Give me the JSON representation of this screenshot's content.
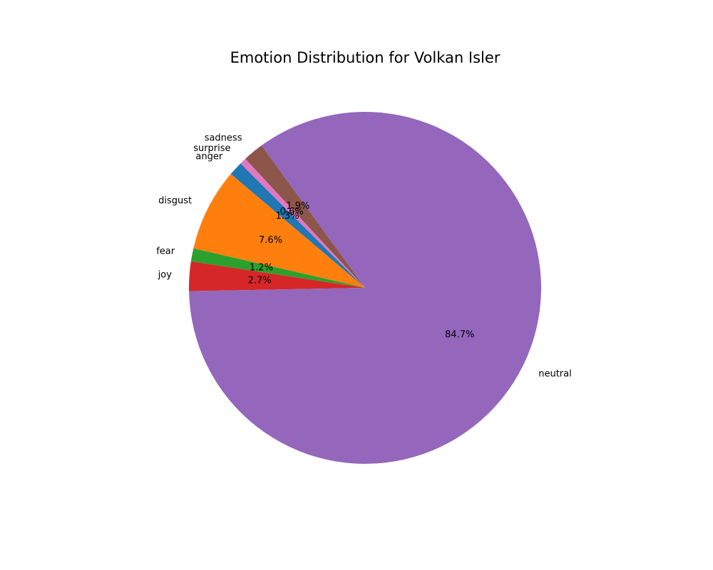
{
  "chart_data": {
    "type": "pie",
    "title": "Emotion Distribution for Volkan Isler",
    "slices": [
      {
        "label": "anger",
        "value": 1.3,
        "pct_label": "1.3%",
        "color": "#1f77b4"
      },
      {
        "label": "disgust",
        "value": 7.6,
        "pct_label": "7.6%",
        "color": "#ff7f0e"
      },
      {
        "label": "fear",
        "value": 1.2,
        "pct_label": "1.2%",
        "color": "#2ca02c"
      },
      {
        "label": "joy",
        "value": 2.7,
        "pct_label": "2.7%",
        "color": "#d62728"
      },
      {
        "label": "neutral",
        "value": 84.7,
        "pct_label": "84.7%",
        "color": "#9467bd"
      },
      {
        "label": "sadness",
        "value": 1.9,
        "pct_label": "1.9%",
        "color": "#8c564b"
      },
      {
        "label": "surprise",
        "value": 0.6,
        "pct_label": "0.6%",
        "color": "#e377c2"
      }
    ],
    "start_angle_deg": 135,
    "direction": "counterclockwise",
    "legend": "none"
  }
}
